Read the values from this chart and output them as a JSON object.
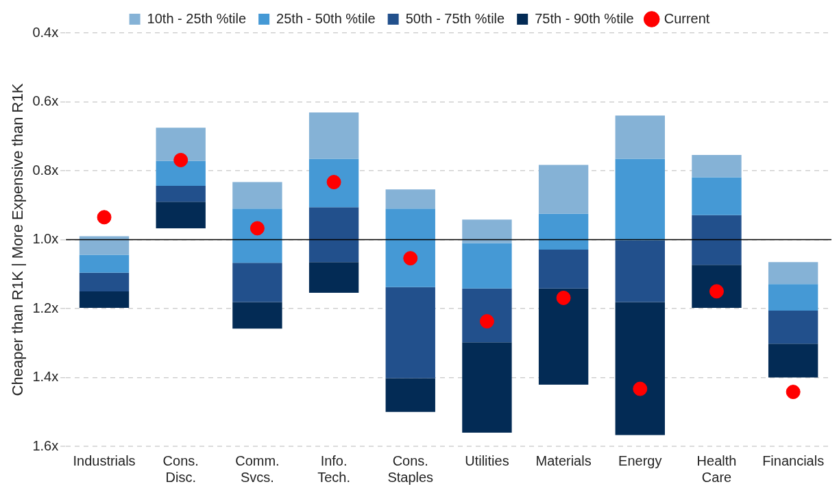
{
  "chart_data": {
    "type": "bar",
    "ylabel": "Cheaper than R1K | More Expensive than R1K",
    "categories": [
      "Industrials",
      "Cons. Disc.",
      "Comm. Svcs.",
      "Info. Tech.",
      "Cons. Staples",
      "Utilities",
      "Materials",
      "Energy",
      "Health Care",
      "Financials"
    ],
    "series": [
      {
        "name": "10th - 25th %tile",
        "color": "#85b2d6",
        "base": [
          0.99,
          0.675,
          0.833,
          0.631,
          0.854,
          0.942,
          0.783,
          0.64,
          0.754,
          1.065
        ],
        "values": [
          0.054,
          0.096,
          0.077,
          0.134,
          0.056,
          0.068,
          0.142,
          0.125,
          0.065,
          0.064
        ]
      },
      {
        "name": "25th - 50th %tile",
        "color": "#4599d5",
        "base": [
          1.044,
          0.771,
          0.91,
          0.765,
          0.91,
          1.01,
          0.925,
          0.765,
          0.819,
          1.129
        ],
        "values": [
          0.052,
          0.073,
          0.157,
          0.141,
          0.228,
          0.132,
          0.104,
          0.237,
          0.11,
          0.077
        ]
      },
      {
        "name": "50th - 75th %tile",
        "color": "#22508c",
        "base": [
          1.096,
          0.844,
          1.067,
          0.906,
          1.138,
          1.142,
          1.029,
          1.002,
          0.929,
          1.206
        ],
        "values": [
          0.054,
          0.046,
          0.114,
          0.159,
          0.264,
          0.156,
          0.113,
          0.179,
          0.144,
          0.096
        ]
      },
      {
        "name": "75th - 90th %tile",
        "color": "#032b55",
        "base": [
          1.15,
          0.89,
          1.181,
          1.065,
          1.402,
          1.298,
          1.142,
          1.181,
          1.073,
          1.302
        ],
        "values": [
          0.048,
          0.077,
          0.077,
          0.089,
          0.098,
          0.262,
          0.279,
          0.386,
          0.125,
          0.098
        ]
      },
      {
        "name": "Current",
        "type": "scatter",
        "color": "#ff0000",
        "x": [
          "Industrials",
          "Cons. Disc.",
          "Comm. Svcs.",
          "Info. Tech.",
          "Cons. Staples",
          "Utilities",
          "Materials",
          "Energy",
          "Health Care",
          "Financials"
        ],
        "values": [
          0.935,
          0.769,
          0.967,
          0.833,
          1.054,
          1.237,
          1.169,
          1.433,
          1.15,
          1.442
        ]
      }
    ],
    "ylim": [
      1.6,
      0.4
    ],
    "yticks": [
      {
        "value": 0.4,
        "label": "0.4x"
      },
      {
        "value": 0.6,
        "label": "0.6x"
      },
      {
        "value": 0.8,
        "label": "0.8x"
      },
      {
        "value": 1.0,
        "label": "1.0x"
      },
      {
        "value": 1.2,
        "label": "1.2x"
      },
      {
        "value": 1.4,
        "label": "1.4x"
      },
      {
        "value": 1.6,
        "label": "1.6x"
      }
    ],
    "ref_lines": [
      {
        "axis": "y",
        "value": 1.0,
        "color": "#000000"
      }
    ],
    "grid": "y",
    "legend": "top",
    "marker": "circle"
  }
}
